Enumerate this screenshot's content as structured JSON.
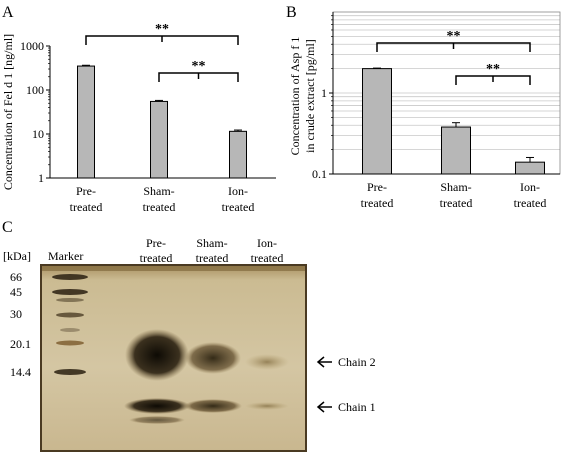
{
  "panels": {
    "a": "A",
    "b": "B",
    "c": "C"
  },
  "significance": "**",
  "colors": {
    "bar": "#b7b7b7",
    "gel_background": "#c9b78f",
    "gel_border": "#4a3a22",
    "band": "#1a1508"
  },
  "chart_data": [
    {
      "type": "bar",
      "panel": "A",
      "title": "",
      "xlabel": "",
      "ylabel": "Concentration of Fel d 1 [ng/ml]",
      "yscale": "log",
      "ylim": [
        1,
        1000
      ],
      "yticks": [
        "1",
        "10",
        "100",
        "1000"
      ],
      "categories": [
        [
          "Pre-",
          "treated"
        ],
        [
          "Sham-",
          "treated"
        ],
        [
          "Ion-",
          "treated"
        ]
      ],
      "values": [
        350,
        55,
        11.5
      ],
      "errors": [
        15,
        3,
        0.8
      ],
      "grid": false,
      "brackets": [
        {
          "from": 0,
          "to": 2,
          "label": "**"
        },
        {
          "from": 1,
          "to": 2,
          "label": "**"
        }
      ]
    },
    {
      "type": "bar",
      "panel": "B",
      "title": "",
      "xlabel": "",
      "ylabel": [
        "Concentration of Asp f 1",
        "in crude extract [pg/ml]"
      ],
      "yscale": "log",
      "ylim": [
        0.1,
        10
      ],
      "yticks": [
        "0.1",
        "1"
      ],
      "categories": [
        [
          "Pre-",
          "treated"
        ],
        [
          "Sham-",
          "treated"
        ],
        [
          "Ion-",
          "treated"
        ]
      ],
      "values": [
        2.0,
        0.38,
        0.14
      ],
      "errors": [
        0.03,
        0.05,
        0.02
      ],
      "grid": true,
      "brackets": [
        {
          "from": 0,
          "to": 2,
          "label": "**"
        },
        {
          "from": 1,
          "to": 2,
          "label": "**"
        }
      ]
    }
  ],
  "gel": {
    "kda_label": "[kDa]",
    "marker_label": "Marker",
    "lanes": [
      {
        "line1": "Pre-",
        "line2": "treated"
      },
      {
        "line1": "Sham-",
        "line2": "treated"
      },
      {
        "line1": "Ion-",
        "line2": "treated"
      }
    ],
    "markers": [
      "66",
      "45",
      "30",
      "20.1",
      "14.4"
    ],
    "chain2_label": "Chain 2",
    "chain1_label": "Chain 1"
  }
}
